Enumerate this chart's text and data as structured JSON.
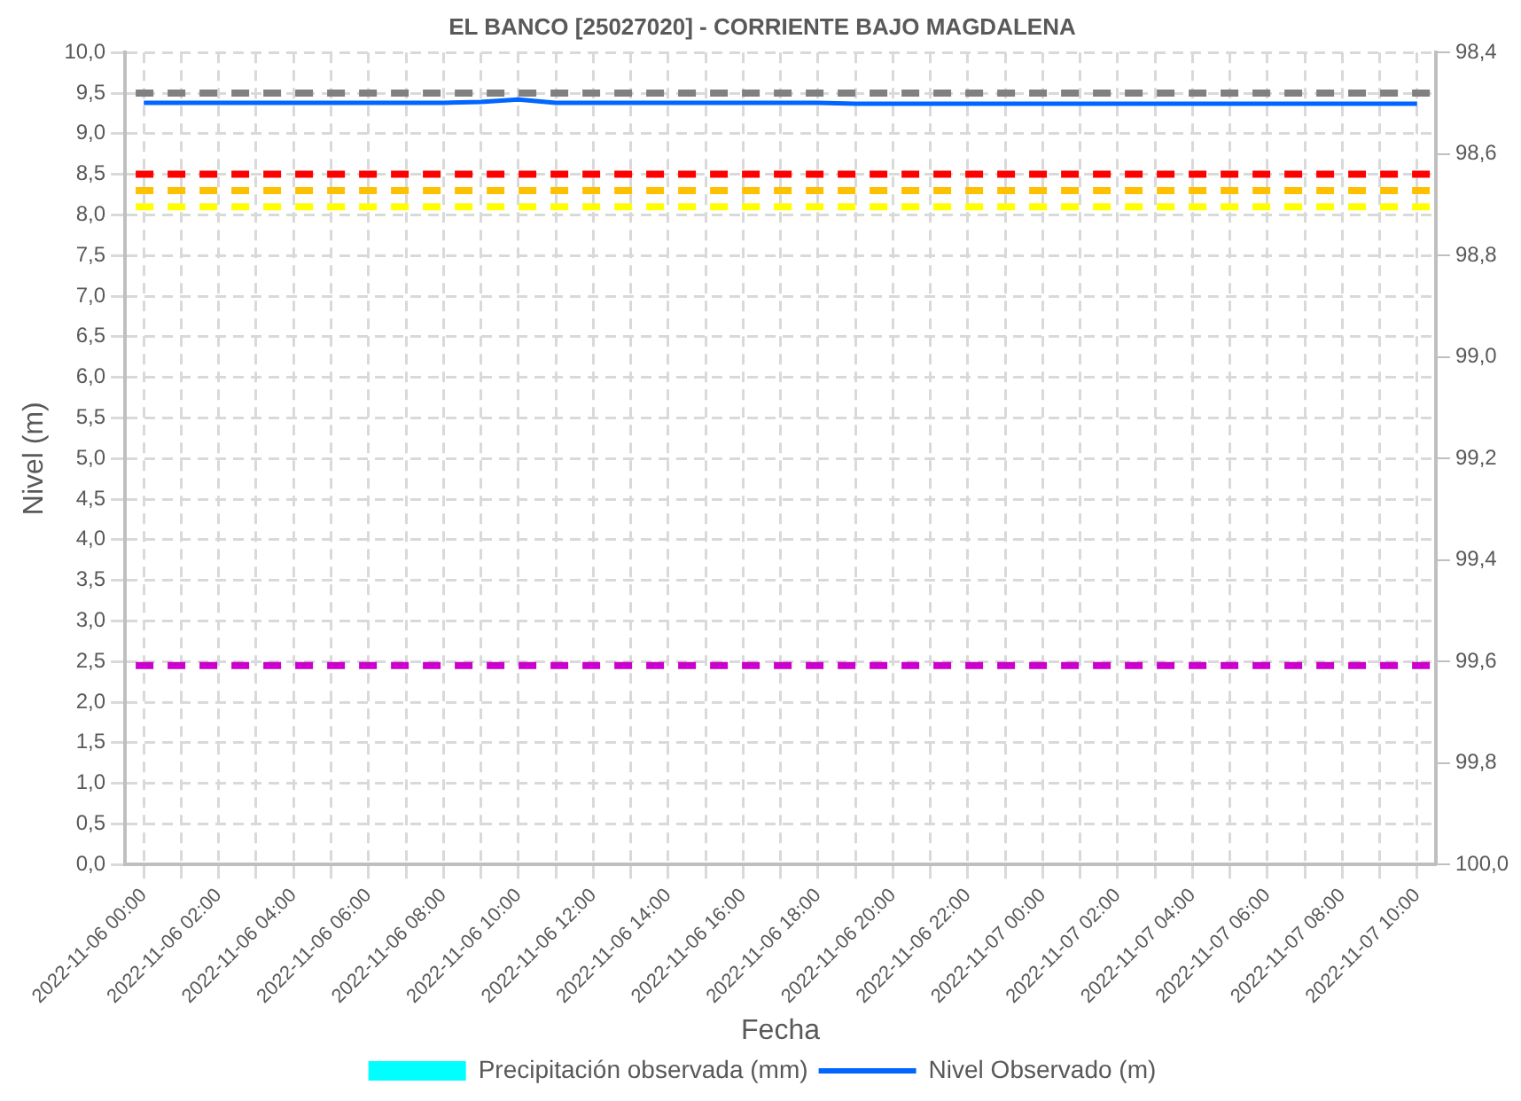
{
  "chart_data": {
    "type": "line",
    "title": "EL BANCO [25027020] - CORRIENTE BAJO MAGDALENA",
    "xlabel": "Fecha",
    "ylabel": "Nivel (m)",
    "categories": [
      "2022-11-06 00:00",
      null,
      "2022-11-06 02:00",
      null,
      "2022-11-06 04:00",
      null,
      "2022-11-06 06:00",
      null,
      "2022-11-06 08:00",
      null,
      "2022-11-06 10:00",
      null,
      "2022-11-06 12:00",
      null,
      "2022-11-06 14:00",
      null,
      "2022-11-06 16:00",
      null,
      "2022-11-06 18:00",
      null,
      "2022-11-06 20:00",
      null,
      "2022-11-06 22:00",
      null,
      "2022-11-07 00:00",
      null,
      "2022-11-07 02:00",
      null,
      "2022-11-07 04:00",
      null,
      "2022-11-07 06:00",
      null,
      "2022-11-07 08:00",
      null,
      "2022-11-07 10:00"
    ],
    "series": [
      {
        "name": "Precipitación observada (mm)",
        "type": "bar",
        "axis": "y2",
        "color": "#00ffff",
        "values": [
          null,
          null,
          null,
          null,
          null,
          null,
          null,
          null,
          null,
          null,
          null,
          null,
          null,
          null,
          null,
          null,
          null,
          null,
          null,
          null,
          null,
          null,
          null,
          null,
          null,
          null,
          null,
          null,
          null,
          null,
          null,
          null,
          null,
          null,
          null
        ]
      },
      {
        "name": "Nivel Observado (m)",
        "type": "line",
        "color": "#0066ff",
        "values": [
          9.38,
          9.38,
          9.38,
          9.38,
          9.38,
          9.38,
          9.38,
          9.38,
          9.38,
          9.39,
          9.42,
          9.38,
          9.38,
          9.38,
          9.38,
          9.38,
          9.38,
          9.38,
          9.38,
          9.37,
          9.37,
          9.37,
          9.37,
          9.37,
          9.37,
          9.37,
          9.37,
          9.37,
          9.37,
          9.37,
          9.37,
          9.37,
          9.37,
          9.37,
          9.37
        ]
      }
    ],
    "ylim": [
      0,
      10
    ],
    "yticks": [
      {
        "value": 0,
        "label": "0,0"
      },
      {
        "value": 0.5,
        "label": "0,5"
      },
      {
        "value": 1,
        "label": "1,0"
      },
      {
        "value": 1.5,
        "label": "1,5"
      },
      {
        "value": 2,
        "label": "2,0"
      },
      {
        "value": 2.5,
        "label": "2,5"
      },
      {
        "value": 3,
        "label": "3,0"
      },
      {
        "value": 3.5,
        "label": "3,5"
      },
      {
        "value": 4,
        "label": "4,0"
      },
      {
        "value": 4.5,
        "label": "4,5"
      },
      {
        "value": 5,
        "label": "5,0"
      },
      {
        "value": 5.5,
        "label": "5,5"
      },
      {
        "value": 6,
        "label": "6,0"
      },
      {
        "value": 6.5,
        "label": "6,5"
      },
      {
        "value": 7,
        "label": "7,0"
      },
      {
        "value": 7.5,
        "label": "7,5"
      },
      {
        "value": 8,
        "label": "8,0"
      },
      {
        "value": 8.5,
        "label": "8,5"
      },
      {
        "value": 9,
        "label": "9,0"
      },
      {
        "value": 9.5,
        "label": "9,5"
      },
      {
        "value": 10,
        "label": "10,0"
      }
    ],
    "y2lim": [
      100,
      98.4
    ],
    "y2ticks": [
      {
        "value": 98.4,
        "label": "98,4"
      },
      {
        "value": 98.6,
        "label": "98,6"
      },
      {
        "value": 98.8,
        "label": "98,8"
      },
      {
        "value": 99,
        "label": "99,0"
      },
      {
        "value": 99.2,
        "label": "99,2"
      },
      {
        "value": 99.4,
        "label": "99,4"
      },
      {
        "value": 99.6,
        "label": "99,6"
      },
      {
        "value": 99.8,
        "label": "99,8"
      },
      {
        "value": 100,
        "label": "100,0"
      }
    ],
    "ref_lines": [
      {
        "axis": "y",
        "value": 9.5,
        "color": "#808080",
        "line_style": "dashed"
      },
      {
        "axis": "y",
        "value": 8.5,
        "color": "#ff0000",
        "line_style": "dashed"
      },
      {
        "axis": "y",
        "value": 8.3,
        "color": "#ffc000",
        "line_style": "dashed"
      },
      {
        "axis": "y",
        "value": 8.1,
        "color": "#ffff00",
        "line_style": "dashed"
      },
      {
        "axis": "y",
        "value": 2.45,
        "color": "#cc00cc",
        "line_style": "dashed"
      }
    ],
    "grid": true,
    "legend": "bottom",
    "marker": "none",
    "line_style": "solid"
  }
}
